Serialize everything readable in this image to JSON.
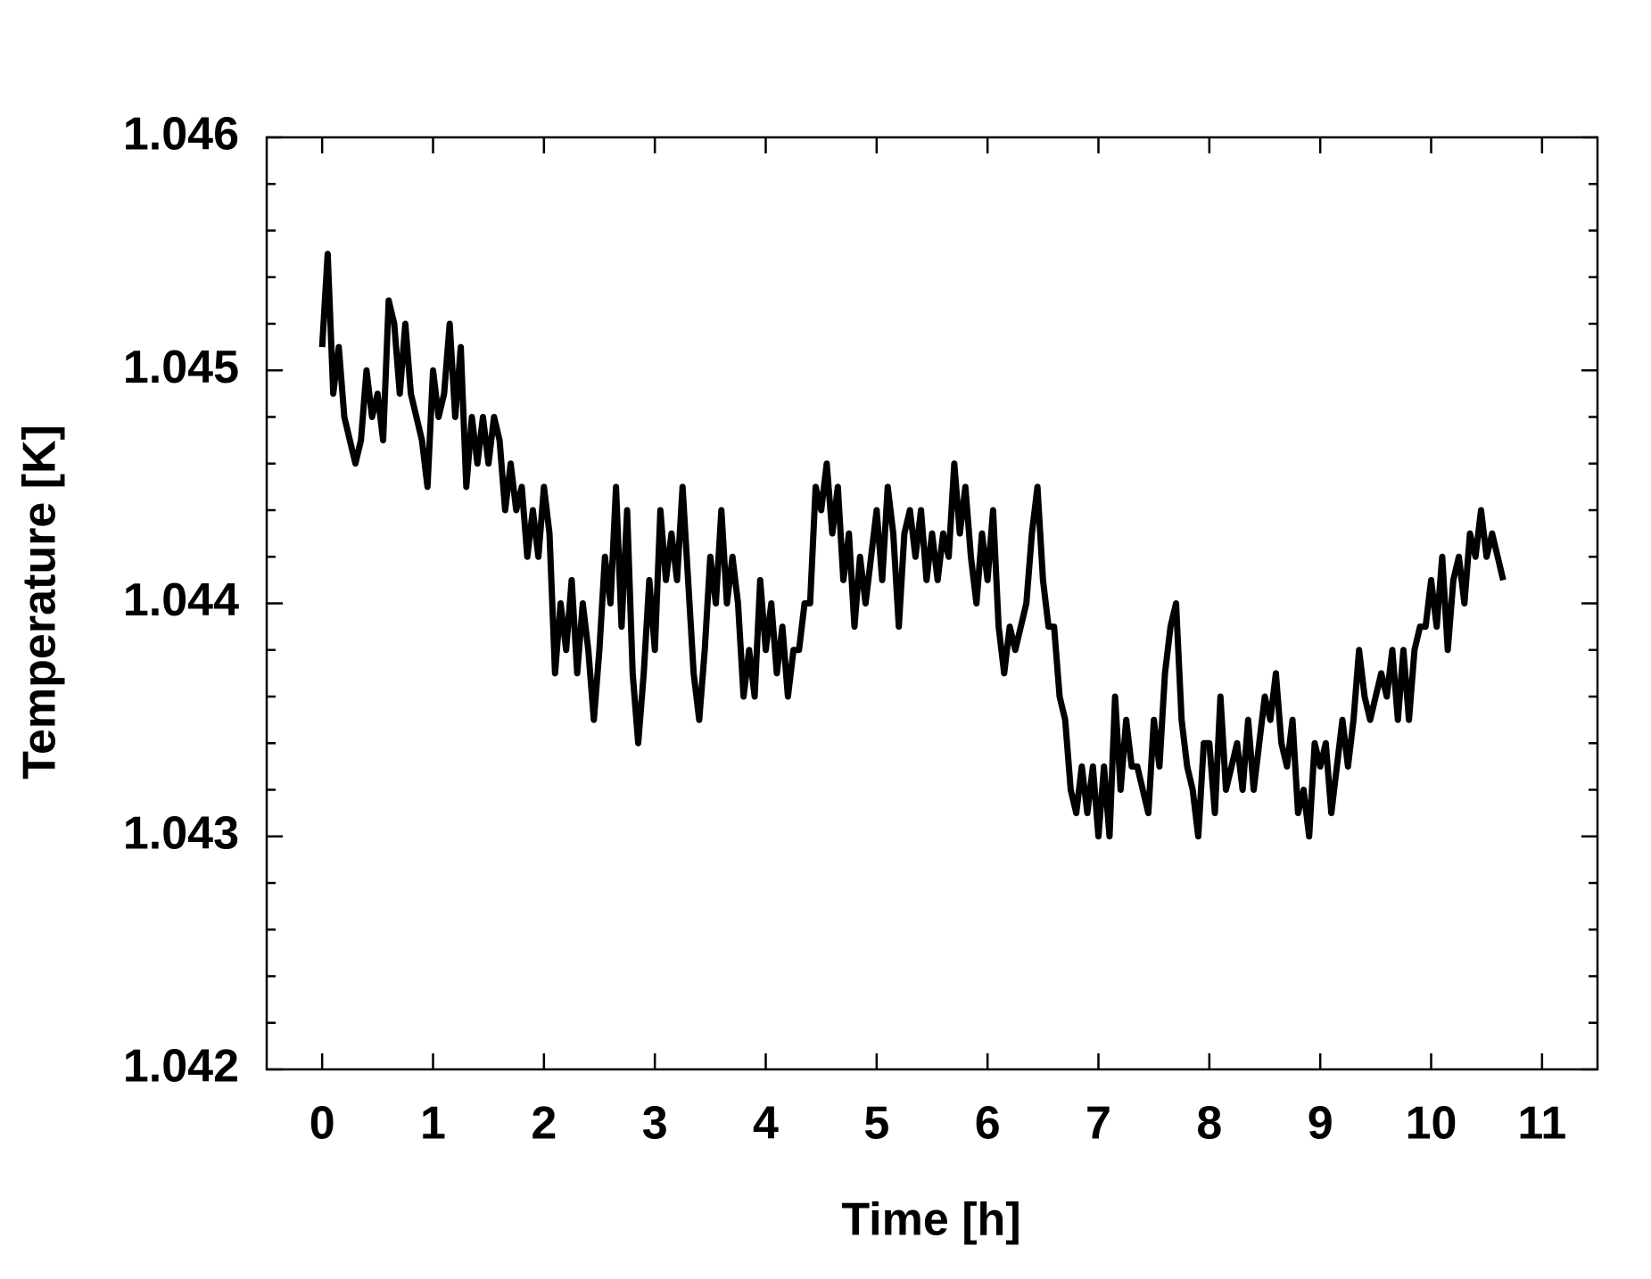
{
  "chart_data": {
    "type": "line",
    "xlabel": "Time [h]",
    "ylabel": "Temperature [K]",
    "xlim": [
      -0.5,
      11.5
    ],
    "xticks": [
      0,
      1,
      2,
      3,
      4,
      5,
      6,
      7,
      8,
      9,
      10,
      11
    ],
    "ylim": [
      1.042,
      1.046
    ],
    "yticks": [
      1.042,
      1.043,
      1.044,
      1.045,
      1.046
    ],
    "yminor_ticks": [
      1.0422,
      1.0424,
      1.0426,
      1.0428,
      1.0432,
      1.0434,
      1.0436,
      1.0438,
      1.0442,
      1.0444,
      1.0446,
      1.0448,
      1.0452,
      1.0454,
      1.0456,
      1.0458
    ],
    "grid": false,
    "x": [
      0,
      0.05,
      0.1,
      0.15,
      0.2,
      0.25,
      0.3,
      0.35,
      0.4,
      0.45,
      0.5,
      0.55,
      0.6,
      0.65,
      0.7,
      0.75,
      0.8,
      0.85,
      0.9,
      0.95,
      1,
      1.05,
      1.1,
      1.15,
      1.2,
      1.25,
      1.3,
      1.35,
      1.4,
      1.45,
      1.5,
      1.55,
      1.6,
      1.65,
      1.7,
      1.75,
      1.8,
      1.85,
      1.9,
      1.95,
      2,
      2.05,
      2.1,
      2.15,
      2.2,
      2.25,
      2.3,
      2.35,
      2.4,
      2.45,
      2.5,
      2.55,
      2.6,
      2.65,
      2.7,
      2.75,
      2.8,
      2.85,
      2.9,
      2.95,
      3,
      3.05,
      3.1,
      3.15,
      3.2,
      3.25,
      3.3,
      3.35,
      3.4,
      3.45,
      3.5,
      3.55,
      3.6,
      3.65,
      3.7,
      3.75,
      3.8,
      3.85,
      3.9,
      3.95,
      4,
      4.05,
      4.1,
      4.15,
      4.2,
      4.25,
      4.3,
      4.35,
      4.4,
      4.45,
      4.5,
      4.55,
      4.6,
      4.65,
      4.7,
      4.75,
      4.8,
      4.85,
      4.9,
      4.95,
      5,
      5.05,
      5.1,
      5.15,
      5.2,
      5.25,
      5.3,
      5.35,
      5.4,
      5.45,
      5.5,
      5.55,
      5.6,
      5.65,
      5.7,
      5.75,
      5.8,
      5.85,
      5.9,
      5.95,
      6,
      6.05,
      6.1,
      6.15,
      6.2,
      6.25,
      6.3,
      6.35,
      6.4,
      6.45,
      6.5,
      6.55,
      6.6,
      6.65,
      6.7,
      6.75,
      6.8,
      6.85,
      6.9,
      6.95,
      7,
      7.05,
      7.1,
      7.15,
      7.2,
      7.25,
      7.3,
      7.35,
      7.4,
      7.45,
      7.5,
      7.55,
      7.6,
      7.65,
      7.7,
      7.75,
      7.8,
      7.85,
      7.9,
      7.95,
      8,
      8.05,
      8.1,
      8.15,
      8.2,
      8.25,
      8.3,
      8.35,
      8.4,
      8.45,
      8.5,
      8.55,
      8.6,
      8.65,
      8.7,
      8.75,
      8.8,
      8.85,
      8.9,
      8.95,
      9,
      9.05,
      9.1,
      9.15,
      9.2,
      9.25,
      9.3,
      9.35,
      9.4,
      9.45,
      9.5,
      9.55,
      9.6,
      9.65,
      9.7,
      9.75,
      9.8,
      9.85,
      9.9,
      9.95,
      10,
      10.05,
      10.1,
      10.15,
      10.2,
      10.25,
      10.3,
      10.35,
      10.4,
      10.45,
      10.5,
      10.55,
      10.6,
      10.65
    ],
    "series": [
      {
        "color": "#000000",
        "values": [
          1.0451,
          1.0455,
          1.0449,
          1.0451,
          1.0448,
          1.0447,
          1.0446,
          1.0447,
          1.045,
          1.0448,
          1.0449,
          1.0447,
          1.0453,
          1.0452,
          1.0449,
          1.0452,
          1.0449,
          1.0448,
          1.0447,
          1.0445,
          1.045,
          1.0448,
          1.0449,
          1.0452,
          1.0448,
          1.0451,
          1.0445,
          1.0448,
          1.0446,
          1.0448,
          1.0446,
          1.0448,
          1.0447,
          1.0444,
          1.0446,
          1.0444,
          1.0445,
          1.0442,
          1.0444,
          1.0442,
          1.0445,
          1.0443,
          1.0437,
          1.044,
          1.0438,
          1.0441,
          1.0437,
          1.044,
          1.0438,
          1.0435,
          1.0438,
          1.0442,
          1.044,
          1.0445,
          1.0439,
          1.0444,
          1.0437,
          1.0434,
          1.0437,
          1.0441,
          1.0438,
          1.0444,
          1.0441,
          1.0443,
          1.0441,
          1.0445,
          1.0441,
          1.0437,
          1.0435,
          1.0438,
          1.0442,
          1.044,
          1.0444,
          1.044,
          1.0442,
          1.044,
          1.0436,
          1.0438,
          1.0436,
          1.0441,
          1.0438,
          1.044,
          1.0437,
          1.0439,
          1.0436,
          1.0438,
          1.0438,
          1.044,
          1.044,
          1.0445,
          1.0444,
          1.0446,
          1.0443,
          1.0445,
          1.0441,
          1.0443,
          1.0439,
          1.0442,
          1.044,
          1.0442,
          1.0444,
          1.0441,
          1.0445,
          1.0443,
          1.0439,
          1.0443,
          1.0444,
          1.0442,
          1.0444,
          1.0441,
          1.0443,
          1.0441,
          1.0443,
          1.0442,
          1.0446,
          1.0443,
          1.0445,
          1.0442,
          1.044,
          1.0443,
          1.0441,
          1.0444,
          1.0439,
          1.0437,
          1.0439,
          1.0438,
          1.0439,
          1.044,
          1.0443,
          1.0445,
          1.0441,
          1.0439,
          1.0439,
          1.0436,
          1.0435,
          1.0432,
          1.0431,
          1.0433,
          1.0431,
          1.0433,
          1.043,
          1.0433,
          1.043,
          1.0436,
          1.0432,
          1.0435,
          1.0433,
          1.0433,
          1.0432,
          1.0431,
          1.0435,
          1.0433,
          1.0437,
          1.0439,
          1.044,
          1.0435,
          1.0433,
          1.0432,
          1.043,
          1.0434,
          1.0434,
          1.0431,
          1.0436,
          1.0432,
          1.0433,
          1.0434,
          1.0432,
          1.0435,
          1.0432,
          1.0434,
          1.0436,
          1.0435,
          1.0437,
          1.0434,
          1.0433,
          1.0435,
          1.0431,
          1.0432,
          1.043,
          1.0434,
          1.0433,
          1.0434,
          1.0431,
          1.0433,
          1.0435,
          1.0433,
          1.0435,
          1.0438,
          1.0436,
          1.0435,
          1.0436,
          1.0437,
          1.0436,
          1.0438,
          1.0435,
          1.0438,
          1.0435,
          1.0438,
          1.0439,
          1.0439,
          1.0441,
          1.0439,
          1.0442,
          1.0438,
          1.0441,
          1.0442,
          1.044,
          1.0443,
          1.0442,
          1.0444,
          1.0442,
          1.0443,
          1.0442,
          1.0441
        ]
      }
    ]
  }
}
